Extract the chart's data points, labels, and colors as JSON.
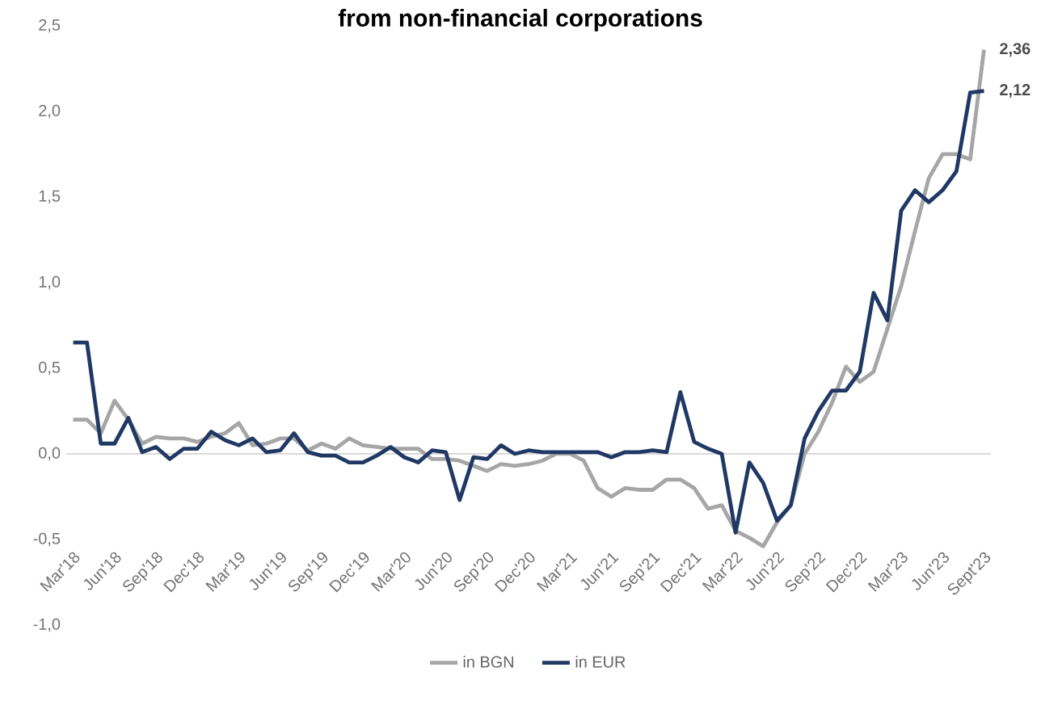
{
  "chart_data": {
    "type": "line",
    "title": "from non-financial corporations",
    "categories": [
      "Mar'18",
      null,
      null,
      "Jun'18",
      null,
      null,
      "Sep'18",
      null,
      null,
      "Dec'18",
      null,
      null,
      "Mar'19",
      null,
      null,
      "Jun'19",
      null,
      null,
      "Sep'19",
      null,
      null,
      "Dec'19",
      null,
      null,
      "Mar'20",
      null,
      null,
      "Jun'20",
      null,
      null,
      "Sep'20",
      null,
      null,
      "Dec'20",
      null,
      null,
      "Mar'21",
      null,
      null,
      "Jun'21",
      null,
      null,
      "Sep'21",
      null,
      null,
      "Dec'21",
      null,
      null,
      "Mar'22",
      null,
      null,
      "Jun'22",
      null,
      null,
      "Sep'22",
      null,
      null,
      "Dec'22",
      null,
      null,
      "Mar'23",
      null,
      null,
      "Jun'23",
      null,
      null,
      "Sept'23"
    ],
    "series": [
      {
        "name": "in BGN",
        "color": "#a6a6a6",
        "values": [
          0.2,
          0.2,
          0.12,
          0.31,
          0.2,
          0.06,
          0.1,
          0.09,
          0.09,
          0.07,
          0.1,
          0.12,
          0.18,
          0.05,
          0.06,
          0.09,
          0.09,
          0.02,
          0.06,
          0.03,
          0.09,
          0.05,
          0.04,
          0.03,
          0.03,
          0.03,
          -0.03,
          -0.03,
          -0.04,
          -0.07,
          -0.1,
          -0.06,
          -0.07,
          -0.06,
          -0.04,
          0.0,
          0.0,
          -0.04,
          -0.2,
          -0.25,
          -0.2,
          -0.21,
          -0.21,
          -0.15,
          -0.15,
          -0.2,
          -0.32,
          -0.3,
          -0.45,
          -0.49,
          -0.54,
          -0.4,
          -0.3,
          0.0,
          0.13,
          0.3,
          0.51,
          0.42,
          0.48,
          0.73,
          0.98,
          1.3,
          1.61,
          1.75,
          1.75,
          1.72,
          2.36
        ],
        "value_labels": [
          null,
          null,
          null,
          null,
          null,
          null,
          null,
          null,
          null,
          null,
          null,
          null,
          null,
          null,
          null,
          null,
          null,
          null,
          null,
          null,
          null,
          null,
          null,
          null,
          null,
          null,
          null,
          null,
          null,
          null,
          null,
          null,
          null,
          null,
          null,
          null,
          null,
          null,
          null,
          null,
          null,
          null,
          null,
          null,
          null,
          null,
          null,
          null,
          null,
          null,
          null,
          null,
          null,
          null,
          null,
          null,
          null,
          null,
          null,
          null,
          null,
          null,
          null,
          null,
          null,
          null,
          "2,36"
        ]
      },
      {
        "name": "in EUR",
        "color": "#1f3864",
        "values": [
          0.65,
          0.65,
          0.06,
          0.06,
          0.21,
          0.01,
          0.04,
          -0.03,
          0.03,
          0.03,
          0.13,
          0.08,
          0.05,
          0.09,
          0.01,
          0.02,
          0.12,
          0.01,
          -0.01,
          -0.01,
          -0.05,
          -0.05,
          -0.01,
          0.04,
          -0.02,
          -0.05,
          0.02,
          0.01,
          -0.27,
          -0.02,
          -0.03,
          0.05,
          0.0,
          0.02,
          0.01,
          0.01,
          0.01,
          0.01,
          0.01,
          -0.02,
          0.01,
          0.01,
          0.02,
          0.01,
          0.36,
          0.07,
          0.03,
          0.0,
          -0.46,
          -0.05,
          -0.17,
          -0.39,
          -0.3,
          0.09,
          0.25,
          0.37,
          0.37,
          0.48,
          0.94,
          0.78,
          1.42,
          1.54,
          1.47,
          1.54,
          1.65,
          2.11,
          2.12
        ],
        "value_labels": [
          null,
          null,
          null,
          null,
          null,
          null,
          null,
          null,
          null,
          null,
          null,
          null,
          null,
          null,
          null,
          null,
          null,
          null,
          null,
          null,
          null,
          null,
          null,
          null,
          null,
          null,
          null,
          null,
          null,
          null,
          null,
          null,
          null,
          null,
          null,
          null,
          null,
          null,
          null,
          null,
          null,
          null,
          null,
          null,
          null,
          null,
          null,
          null,
          null,
          null,
          null,
          null,
          null,
          null,
          null,
          null,
          null,
          null,
          null,
          null,
          null,
          null,
          null,
          null,
          null,
          null,
          "2,12"
        ]
      }
    ],
    "ylim": [
      -1.0,
      2.5
    ],
    "yticks": [
      {
        "value": -1.0,
        "label": "-1,0"
      },
      {
        "value": -0.5,
        "label": "-0,5"
      },
      {
        "value": 0.0,
        "label": "0,0"
      },
      {
        "value": 0.5,
        "label": "0,5"
      },
      {
        "value": 1.0,
        "label": "1,0"
      },
      {
        "value": 1.5,
        "label": "1,5"
      },
      {
        "value": 2.0,
        "label": "2,0"
      },
      {
        "value": 2.5,
        "label": "2,5"
      }
    ],
    "ref_lines": [
      {
        "axis": "y",
        "value": 0.0,
        "color": "#d9d9d9"
      }
    ],
    "grid": false,
    "legend": "bottom",
    "marker": "none",
    "line_style": "solid"
  }
}
